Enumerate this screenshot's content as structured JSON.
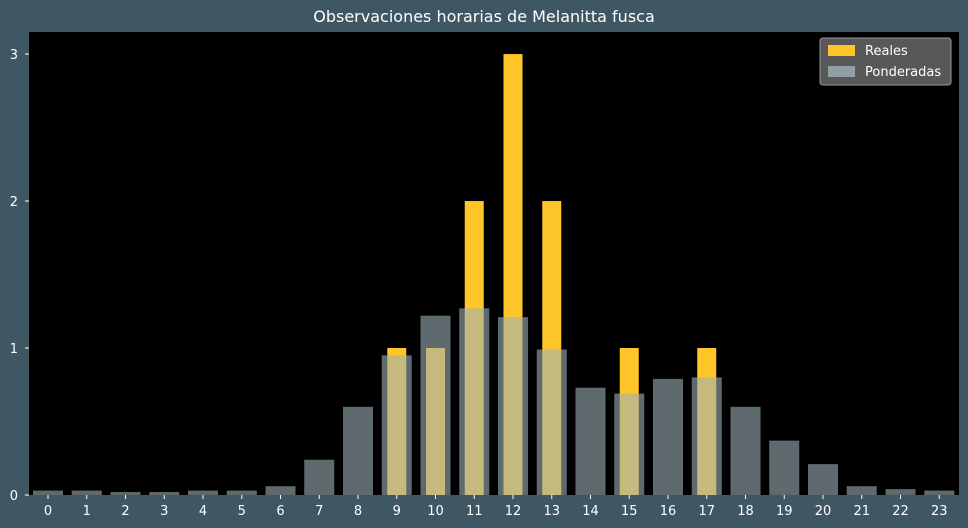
{
  "chart_data": {
    "type": "bar",
    "title": "Observaciones horarias de Melanitta fusca",
    "xlabel": "",
    "ylabel": "",
    "categories": [
      "0",
      "1",
      "2",
      "3",
      "4",
      "5",
      "6",
      "7",
      "8",
      "9",
      "10",
      "11",
      "12",
      "13",
      "14",
      "15",
      "16",
      "17",
      "18",
      "19",
      "20",
      "21",
      "22",
      "23"
    ],
    "ylim": [
      0,
      3.15
    ],
    "yticks": [
      "0",
      "1",
      "2",
      "3"
    ],
    "grid": false,
    "legend_position": "top-right",
    "series": [
      {
        "name": "Reales",
        "color": "#ffc629",
        "values": [
          0,
          0,
          0,
          0,
          0,
          0,
          0,
          0,
          0,
          1,
          1,
          2,
          3,
          2,
          0,
          1,
          0,
          1,
          0,
          0,
          0,
          0,
          0,
          0
        ]
      },
      {
        "name": "Ponderadas",
        "color": "#9fb1b8",
        "values": [
          0.03,
          0.03,
          0.02,
          0.02,
          0.03,
          0.03,
          0.06,
          0.24,
          0.6,
          0.95,
          1.22,
          1.27,
          1.21,
          0.99,
          0.73,
          0.69,
          0.79,
          0.8,
          0.6,
          0.37,
          0.21,
          0.06,
          0.04,
          0.03
        ]
      }
    ]
  }
}
